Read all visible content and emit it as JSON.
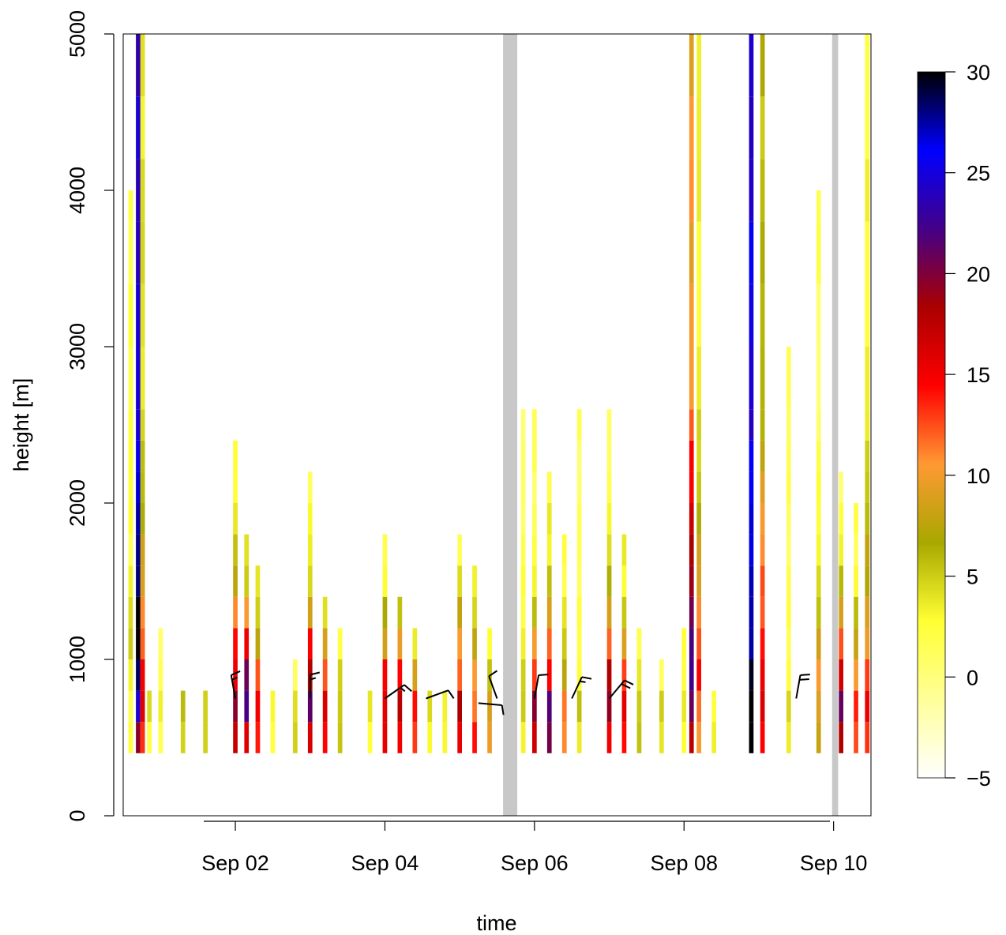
{
  "chart_data": {
    "type": "heatmap",
    "title": "",
    "xlabel": "time",
    "ylabel": "height [m]",
    "x_range": [
      "Aug 31 12:00",
      "Sep 10 12:00"
    ],
    "ylim": [
      0,
      5000
    ],
    "x_ticks": [
      {
        "label": "Sep 02",
        "day": 2
      },
      {
        "label": "Sep 04",
        "day": 4
      },
      {
        "label": "Sep 06",
        "day": 6
      },
      {
        "label": "Sep 08",
        "day": 8
      },
      {
        "label": "Sep 10",
        "day": 10
      }
    ],
    "y_ticks": [
      0,
      1000,
      2000,
      3000,
      4000,
      5000
    ],
    "y_tick_labels": [
      "0",
      "1000",
      "2000",
      "3000",
      "4000",
      "5000"
    ],
    "colorbar": {
      "range": [
        -5,
        30
      ],
      "ticks": [
        -5,
        0,
        5,
        10,
        15,
        20,
        25,
        30
      ],
      "tick_labels": [
        "−5",
        "0",
        "5",
        "10",
        "15",
        "20",
        "25",
        "30"
      ],
      "colors": [
        "#ffffff",
        "#ffff99",
        "#ffff33",
        "#a8a800",
        "#ff9933",
        "#ff0000",
        "#aa0000",
        "#440088",
        "#0000ff",
        "#000000"
      ]
    },
    "missing_data_color": "#c8c8c8",
    "missing_data_periods": [
      {
        "start_day": 5.58,
        "end_day": 5.77
      },
      {
        "start_day": 9.98,
        "end_day": 10.06
      }
    ],
    "height_levels_m": [
      400,
      600,
      800,
      1000,
      1200,
      1400,
      1600,
      1800,
      2000,
      2200,
      2400,
      2600,
      3000,
      3400,
      3800,
      4200,
      4600,
      5000
    ],
    "columns": [
      {
        "day": 0.6,
        "h": 4000,
        "p": [
          2,
          2,
          3,
          4,
          4,
          3,
          2
        ]
      },
      {
        "day": 0.7,
        "h": 5000,
        "p": [
          20,
          25,
          28,
          30,
          30,
          29,
          28,
          27,
          27,
          26,
          25,
          24
        ]
      },
      {
        "day": 0.76,
        "h": 5000,
        "p": [
          14,
          16,
          15,
          12,
          10,
          9,
          8,
          7,
          6,
          5,
          4,
          4
        ]
      },
      {
        "day": 0.85,
        "h": 800,
        "p": [
          3,
          4
        ]
      },
      {
        "day": 1.0,
        "h": 1200,
        "p": [
          2,
          3,
          2,
          1
        ]
      },
      {
        "day": 1.3,
        "h": 800,
        "p": [
          5,
          6
        ]
      },
      {
        "day": 1.6,
        "h": 800,
        "p": [
          4,
          5
        ]
      },
      {
        "day": 2.0,
        "h": 2400,
        "p": [
          18,
          20,
          16,
          14,
          12,
          8,
          6,
          4,
          3,
          2
        ]
      },
      {
        "day": 2.15,
        "h": 1800,
        "p": [
          16,
          22,
          20,
          15,
          10,
          6,
          4
        ]
      },
      {
        "day": 2.3,
        "h": 1600,
        "p": [
          14,
          15,
          12,
          8,
          5,
          3
        ]
      },
      {
        "day": 2.5,
        "h": 800,
        "p": [
          3,
          3
        ]
      },
      {
        "day": 2.8,
        "h": 1000,
        "p": [
          4,
          4,
          2
        ]
      },
      {
        "day": 3.0,
        "h": 2200,
        "p": [
          16,
          21,
          18,
          14,
          8,
          5,
          3,
          2,
          1
        ]
      },
      {
        "day": 3.2,
        "h": 1400,
        "p": [
          15,
          16,
          12,
          8,
          4
        ]
      },
      {
        "day": 3.4,
        "h": 1200,
        "p": [
          5,
          6,
          4,
          3
        ]
      },
      {
        "day": 3.8,
        "h": 800,
        "p": [
          3,
          4
        ]
      },
      {
        "day": 4.0,
        "h": 1800,
        "p": [
          15,
          16,
          14,
          9,
          6,
          3,
          2
        ]
      },
      {
        "day": 4.2,
        "h": 1400,
        "p": [
          16,
          18,
          14,
          9,
          5
        ]
      },
      {
        "day": 4.4,
        "h": 1200,
        "p": [
          12,
          14,
          8,
          4
        ]
      },
      {
        "day": 4.6,
        "h": 800,
        "p": [
          4,
          5
        ]
      },
      {
        "day": 4.8,
        "h": 800,
        "p": [
          3,
          3
        ]
      },
      {
        "day": 5.0,
        "h": 1800,
        "p": [
          15,
          18,
          12,
          10,
          7,
          4,
          2
        ]
      },
      {
        "day": 5.2,
        "h": 1600,
        "p": [
          14,
          12,
          10,
          8,
          5,
          3
        ]
      },
      {
        "day": 5.4,
        "h": 1200,
        "p": [
          10,
          9,
          6,
          3
        ]
      },
      {
        "day": 5.85,
        "h": 2600,
        "p": [
          4,
          5,
          4,
          3,
          2,
          2,
          1,
          1,
          1,
          1
        ]
      },
      {
        "day": 6.0,
        "h": 2600,
        "p": [
          16,
          20,
          14,
          10,
          6,
          4,
          3,
          2,
          1,
          1
        ]
      },
      {
        "day": 6.2,
        "h": 2200,
        "p": [
          20,
          22,
          15,
          12,
          8,
          6,
          4,
          3,
          2
        ]
      },
      {
        "day": 6.4,
        "h": 1800,
        "p": [
          10,
          12,
          8,
          5,
          3,
          2
        ]
      },
      {
        "day": 6.6,
        "h": 2600,
        "p": [
          4,
          5,
          3,
          2,
          2,
          1,
          1,
          1,
          1
        ]
      },
      {
        "day": 7.0,
        "h": 2600,
        "p": [
          16,
          20,
          18,
          12,
          9,
          6,
          4,
          3,
          2,
          1
        ]
      },
      {
        "day": 7.2,
        "h": 1800,
        "p": [
          14,
          16,
          12,
          8,
          5,
          3
        ]
      },
      {
        "day": 7.4,
        "h": 1200,
        "p": [
          6,
          6,
          4,
          2
        ]
      },
      {
        "day": 7.7,
        "h": 1000,
        "p": [
          3,
          4,
          2
        ]
      },
      {
        "day": 8.0,
        "h": 1200,
        "p": [
          3,
          4,
          3,
          2
        ]
      },
      {
        "day": 8.1,
        "h": 5000,
        "p": [
          18,
          20,
          22,
          21,
          20,
          19,
          18,
          16,
          15,
          14,
          12,
          10
        ]
      },
      {
        "day": 8.2,
        "h": 5000,
        "p": [
          10,
          12,
          14,
          12,
          10,
          9,
          8,
          7,
          6,
          5,
          4,
          3
        ]
      },
      {
        "day": 8.4,
        "h": 800,
        "p": [
          3,
          3
        ]
      },
      {
        "day": 8.9,
        "h": 5000,
        "p": [
          30,
          30,
          29,
          28,
          28,
          28,
          27,
          27,
          26,
          26,
          25,
          25
        ]
      },
      {
        "day": 9.05,
        "h": 5000,
        "p": [
          14,
          16,
          15,
          14,
          13,
          12,
          11,
          10,
          9,
          8,
          7,
          6
        ]
      },
      {
        "day": 9.4,
        "h": 3000,
        "p": [
          3,
          4,
          3,
          2,
          2,
          1,
          1,
          1,
          1,
          1
        ]
      },
      {
        "day": 9.8,
        "h": 4000,
        "p": [
          8,
          9,
          10,
          8,
          6,
          5,
          4,
          3,
          2,
          2,
          1
        ]
      },
      {
        "day": 10.1,
        "h": 2200,
        "p": [
          18,
          20,
          16,
          12,
          8,
          5,
          3,
          2,
          1
        ]
      },
      {
        "day": 10.3,
        "h": 2000,
        "p": [
          12,
          14,
          10,
          8,
          5,
          3,
          2
        ]
      },
      {
        "day": 10.45,
        "h": 5000,
        "p": [
          14,
          16,
          12,
          10,
          9,
          8,
          7,
          6,
          5,
          4,
          3,
          3
        ]
      }
    ],
    "wind_barbs": [
      {
        "day": 2.0,
        "height": 750,
        "angle": -10,
        "barbs": 1.5
      },
      {
        "day": 3.0,
        "height": 750,
        "angle": 0,
        "barbs": 1.5
      },
      {
        "day": 4.0,
        "height": 750,
        "angle": 55,
        "barbs": 1.5
      },
      {
        "day": 4.55,
        "height": 750,
        "angle": 70,
        "barbs": 1
      },
      {
        "day": 5.25,
        "height": 720,
        "angle": 95,
        "barbs": 1
      },
      {
        "day": 5.5,
        "height": 750,
        "angle": -20,
        "barbs": 1
      },
      {
        "day": 6.0,
        "height": 750,
        "angle": 10,
        "barbs": 1
      },
      {
        "day": 6.5,
        "height": 750,
        "angle": 25,
        "barbs": 1.5
      },
      {
        "day": 7.0,
        "height": 750,
        "angle": 40,
        "barbs": 2
      },
      {
        "day": 9.5,
        "height": 750,
        "angle": 10,
        "barbs": 2
      }
    ]
  }
}
